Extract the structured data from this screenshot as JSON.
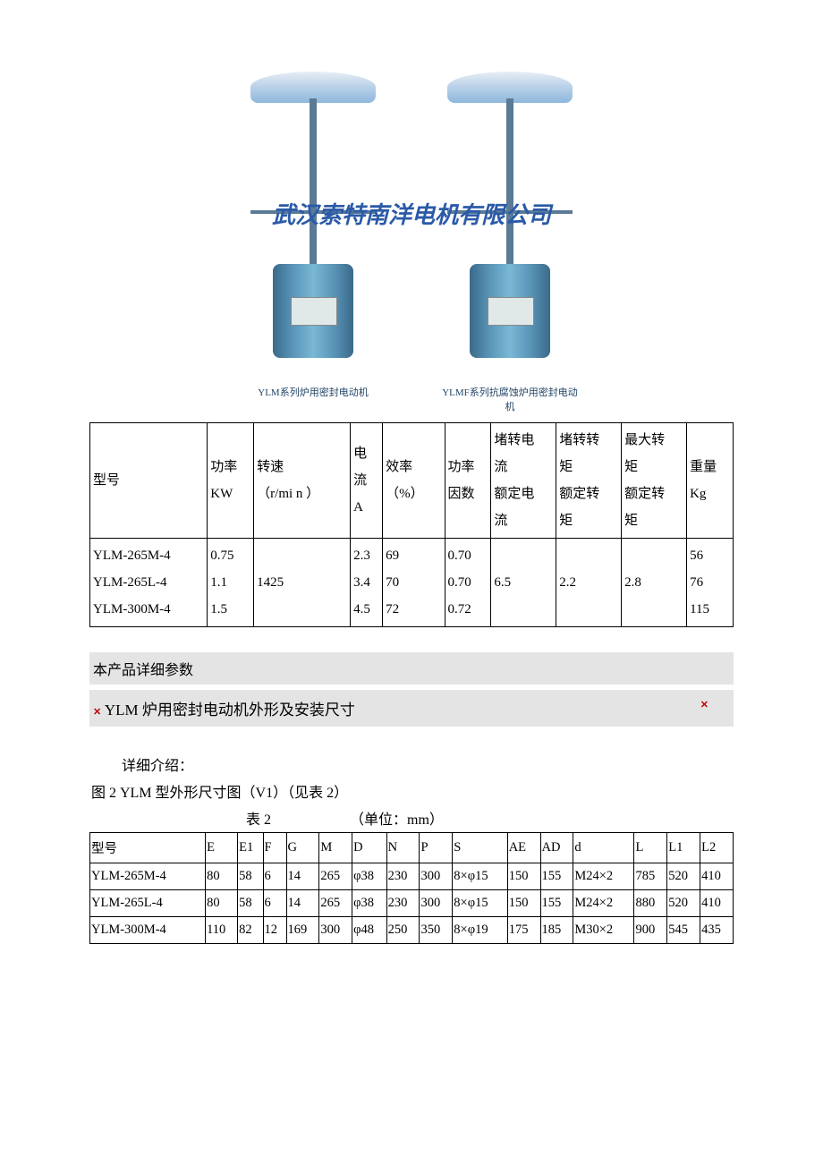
{
  "watermark": "武汉索特南洋电机有限公司",
  "motor_caption_left": "YLM系列炉用密封电动机",
  "motor_caption_right": "YLMF系列抗腐蚀炉用密封电动机",
  "table1": {
    "headers": {
      "model": "型号",
      "power": "功率\nKW",
      "speed": "转速\n（r/mi n ）",
      "current": "电流A",
      "efficiency": "效率\n（%）",
      "pf": "功率因数",
      "locked_current": "堵转电流\n额定电流",
      "locked_torque": "堵转转矩\n额定转矩",
      "max_torque": "最大转矩\n额定转矩",
      "weight": "重量\nKg"
    },
    "rows": [
      {
        "model": "YLM-265M-4",
        "power": "0.75",
        "current": "2.3",
        "eff": "69",
        "pf": "0.70",
        "weight": "56"
      },
      {
        "model": "YLM-265L-4",
        "power": "1.1",
        "current": "3.4",
        "eff": "70",
        "pf": "0.70",
        "weight": "76"
      },
      {
        "model": "YLM-300M-4",
        "power": "1.5",
        "current": "4.5",
        "eff": "72",
        "pf": "0.72",
        "weight": "115"
      }
    ],
    "shared": {
      "speed": "1425",
      "locked_current": "6.5",
      "locked_torque": "2.2",
      "max_torque": "2.8"
    }
  },
  "section_title": "本产品详细参数",
  "section_sub": "YLM 炉用密封电动机外形及安装尺寸",
  "detail_intro": "详细介绍：",
  "fig_caption": "图 2  YLM 型外形尺寸图（V1）（见表 2）",
  "table2_label": "表 2",
  "table2_unit": "（单位：mm）",
  "table2": {
    "headers": [
      "型号",
      "E",
      "E1",
      "F",
      "G",
      "M",
      "D",
      "N",
      "P",
      "S",
      "AE",
      "AD",
      "d",
      "L",
      "L1",
      "L2"
    ],
    "rows": [
      [
        "YLM-265M-4",
        "80",
        "58",
        "6",
        "14",
        "265",
        "φ38",
        "230",
        "300",
        "8×φ15",
        "150",
        "155",
        "M24×2",
        "785",
        "520",
        "410"
      ],
      [
        "YLM-265L-4",
        "80",
        "58",
        "6",
        "14",
        "265",
        "φ38",
        "230",
        "300",
        "8×φ15",
        "150",
        "155",
        "M24×2",
        "880",
        "520",
        "410"
      ],
      [
        "YLM-300M-4",
        "110",
        "82",
        "12",
        "169",
        "300",
        "φ48",
        "250",
        "350",
        "8×φ19",
        "175",
        "185",
        "M30×2",
        "900",
        "545",
        "435"
      ]
    ]
  }
}
